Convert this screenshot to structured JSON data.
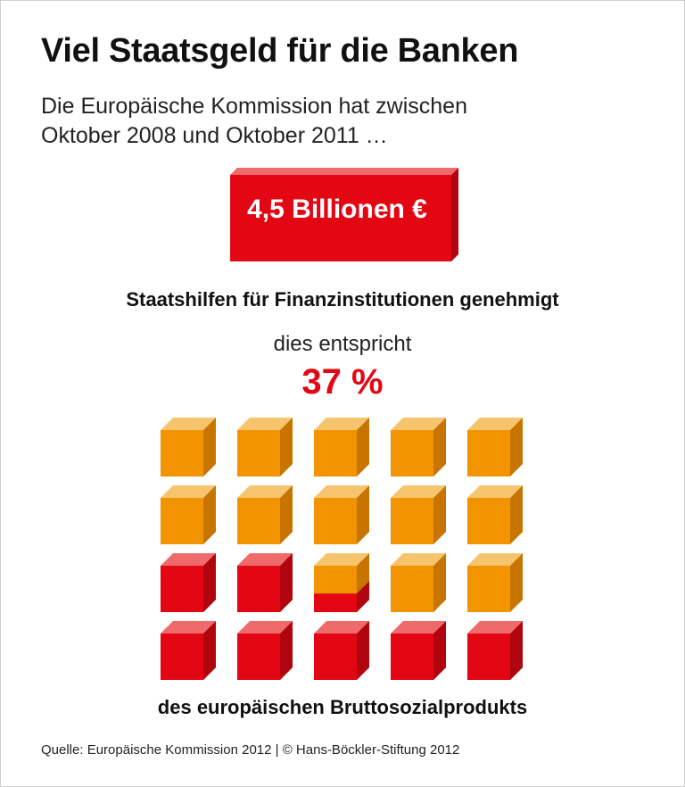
{
  "title": "Viel Staatsgeld für die Banken",
  "intro": {
    "line1": "Die Europäische Kommission hat zwischen",
    "line2": "Oktober 2008 und Oktober 2011 …"
  },
  "amount_label": "4,5 Billionen €",
  "subheading": "Staatshilfen für Finanzinstitutionen genehmigt",
  "equivalence_text": "dies entspricht",
  "percent_label": "37 %",
  "footer_label": "des europäischen Bruttosozialprodukts",
  "source": "Quelle: Europäische Kommission 2012 | © Hans-Böckler-Stiftung 2012",
  "colors": {
    "red": "#e30613",
    "red_top": "#ef6a6a",
    "red_side": "#b0050f",
    "orange": "#f29400",
    "orange_top": "#f7c46e",
    "orange_side": "#c77400"
  },
  "chart_data": {
    "type": "waffle",
    "total_cubes": 20,
    "rows": 4,
    "columns": 5,
    "value_percent": 37,
    "filled_color": "red",
    "remaining_color": "orange",
    "title": "Staatshilfen für Finanzinstitutionen genehmigt",
    "xlabel": "",
    "ylabel": ""
  }
}
